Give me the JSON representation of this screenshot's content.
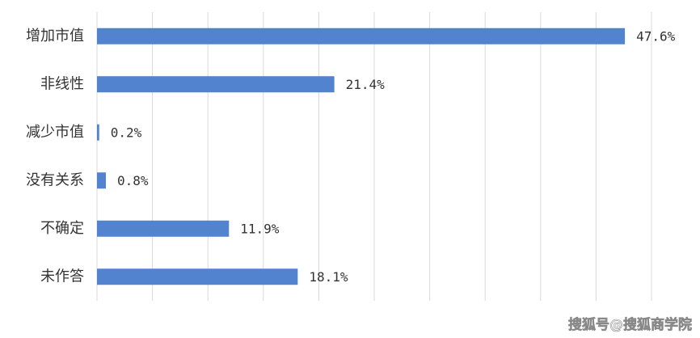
{
  "chart_data": {
    "type": "hbar",
    "categories": [
      "增加市值",
      "非线性",
      "减少市值",
      "没有关系",
      "不确定",
      "未作答"
    ],
    "values": [
      47.6,
      21.4,
      0.2,
      0.8,
      11.9,
      18.1
    ],
    "value_labels": [
      "47.6%",
      "21.4%",
      "0.2%",
      "0.8%",
      "11.9%",
      "18.1%"
    ],
    "color": "#5283cf",
    "xlim": [
      0,
      50
    ],
    "xticks": [
      0,
      5,
      10,
      15,
      20,
      25,
      30,
      35,
      40,
      45,
      50
    ],
    "grid": true,
    "watermark": "搜狐号@搜狐商学院"
  }
}
